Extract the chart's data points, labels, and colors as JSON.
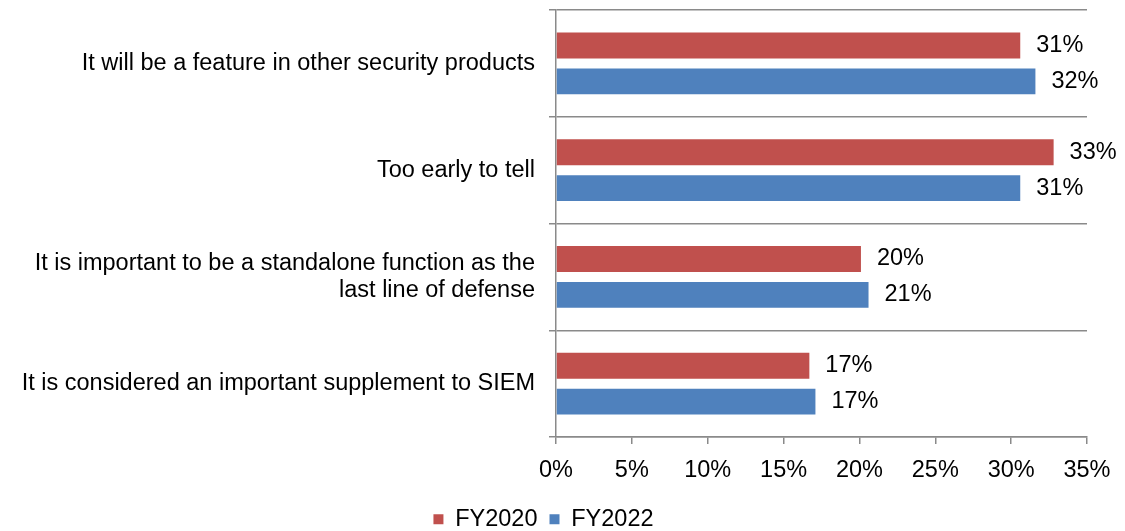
{
  "chart_data": {
    "type": "bar",
    "orientation": "horizontal",
    "categories": [
      "It will be a feature in other security products",
      "Too early to tell",
      "It is important to be a standalone function as the last line of defense",
      "It is considered an important supplement to SIEM"
    ],
    "series": [
      {
        "name": "FY2020",
        "color": "#c0504d",
        "values": [
          30.6,
          32.8,
          20.1,
          16.7
        ],
        "value_labels": [
          "31%",
          "33%",
          "20%",
          "17%"
        ]
      },
      {
        "name": "FY2022",
        "color": "#4f81bd",
        "values": [
          31.6,
          30.6,
          20.6,
          17.1
        ],
        "value_labels": [
          "32%",
          "31%",
          "21%",
          "17%"
        ]
      }
    ],
    "xlim": [
      0,
      35
    ],
    "xticks": [
      {
        "value": 0,
        "label": "0%"
      },
      {
        "value": 5,
        "label": "5%"
      },
      {
        "value": 10,
        "label": "10%"
      },
      {
        "value": 15,
        "label": "15%"
      },
      {
        "value": 20,
        "label": "20%"
      },
      {
        "value": 25,
        "label": "25%"
      },
      {
        "value": 30,
        "label": "30%"
      },
      {
        "value": 35,
        "label": "35%"
      }
    ],
    "grid": "y",
    "legend": "bottom"
  }
}
